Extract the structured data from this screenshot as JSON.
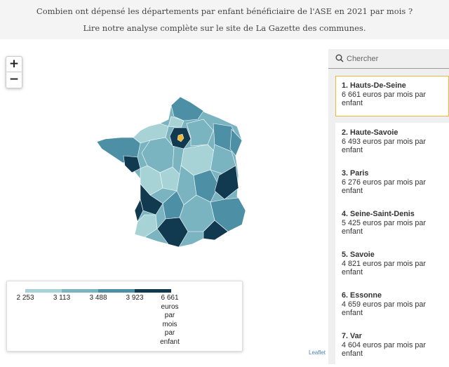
{
  "header": {
    "line1": "Combien ont dépensé les départements par enfant bénéficiaire de l'ASE en 2021 par mois ?",
    "line2": "Lire notre analyse complète sur le site de La Gazette des communes."
  },
  "zoom": {
    "in_label": "+",
    "out_label": "−"
  },
  "legend": {
    "colors": [
      "#a8d3d6",
      "#7ab4c0",
      "#4d8fa5",
      "#11394f"
    ],
    "labels": [
      "2 253",
      "3 113",
      "3 488",
      "3 923",
      "6 661"
    ],
    "unit": [
      "euros",
      "par",
      "mois",
      "par",
      "enfant"
    ]
  },
  "attribution": "Leaflet",
  "search": {
    "placeholder": "Chercher",
    "icon": "search-icon"
  },
  "ranking": [
    {
      "title": "1. Hauts-De-Seine",
      "value": "6 661 euros par mois par",
      "tail": "enfant",
      "selected": true
    },
    {
      "title": "2. Haute-Savoie",
      "value": "6 493 euros par mois par",
      "tail": "enfant",
      "selected": false
    },
    {
      "title": "3. Paris",
      "value": "6 276 euros par mois par",
      "tail": "enfant",
      "selected": false
    },
    {
      "title": "4. Seine-Saint-Denis",
      "value": "5 425 euros par mois par",
      "tail": "enfant",
      "selected": false
    },
    {
      "title": "5. Savoie",
      "value": "4 821 euros par mois par",
      "tail": "enfant",
      "selected": false
    },
    {
      "title": "6. Essonne",
      "value": "4 659 euros par mois par",
      "tail": "enfant",
      "selected": false
    },
    {
      "title": "7. Var",
      "value": "4 604 euros par mois par",
      "tail": "enfant",
      "selected": false
    }
  ],
  "map": {
    "highlight_color": "#f0b73a"
  }
}
